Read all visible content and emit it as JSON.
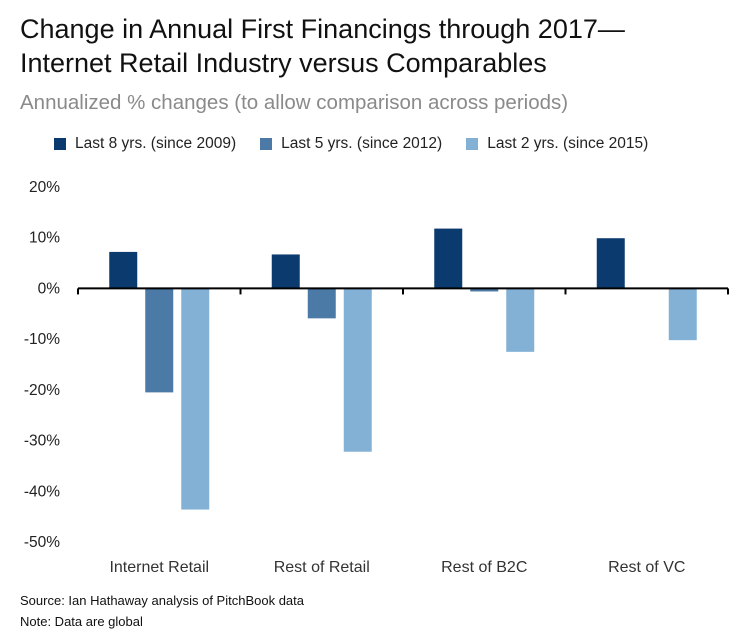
{
  "title_line1": "Change in Annual First Financings through 2017—",
  "title_line2": "Internet Retail Industry versus Comparables",
  "subtitle": "Annualized % changes (to allow comparison across periods)",
  "source": "Source: Ian Hathaway analysis of PitchBook data",
  "note": "Note: Data are global",
  "chart_data": {
    "type": "bar",
    "title": "Change in Annual First Financings through 2017—Internet Retail Industry versus Comparables",
    "subtitle": "Annualized % changes (to allow comparison across periods)",
    "categories": [
      "Internet Retail",
      "Rest of Retail",
      "Rest of B2C",
      "Rest of VC"
    ],
    "series": [
      {
        "name": "Last 8 yrs. (since 2009)",
        "color": "#0b3a6e",
        "values": [
          7.2,
          6.7,
          11.8,
          9.9
        ]
      },
      {
        "name": "Last 5 yrs. (since 2012)",
        "color": "#4b7aa6",
        "values": [
          -20.5,
          -5.9,
          -0.6,
          0.0
        ]
      },
      {
        "name": "Last 2 yrs. (since 2015)",
        "color": "#82b1d5",
        "values": [
          -43.6,
          -32.2,
          -12.5,
          -10.2
        ]
      }
    ],
    "ylim": [
      -50,
      20
    ],
    "yticks": [
      20,
      10,
      0,
      -10,
      -20,
      -30,
      -40,
      -50
    ],
    "ytick_labels": [
      "20%",
      "10%",
      "0%",
      "-10%",
      "-20%",
      "-30%",
      "-40%",
      "-50%"
    ],
    "xlabel": "",
    "ylabel": "",
    "legend_position": "top",
    "grid": false
  }
}
